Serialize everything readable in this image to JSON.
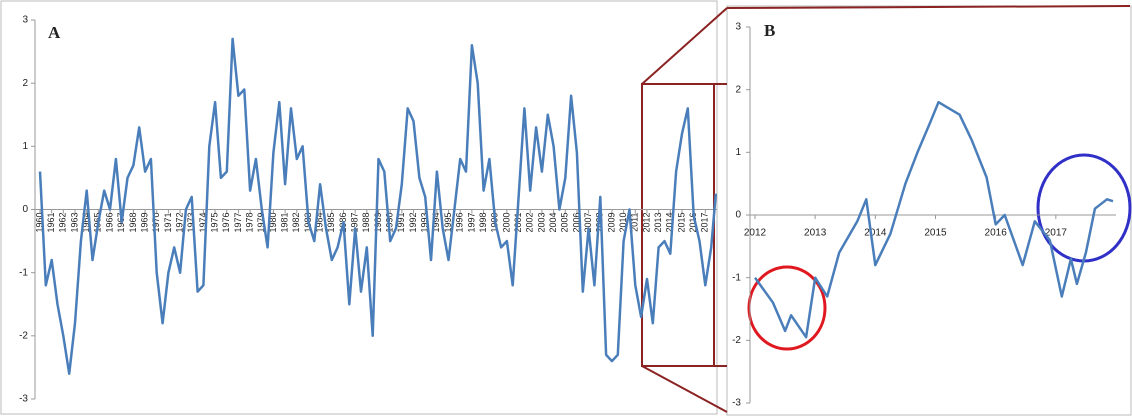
{
  "chart_data": [
    {
      "type": "line",
      "title": "A",
      "color": "#4a7ebb",
      "grid": false,
      "xlim": [
        1960,
        2018
      ],
      "ylim": [
        -3,
        3
      ],
      "yticks": [
        -3,
        -2,
        -1,
        0,
        1,
        2,
        3
      ],
      "xticks": [
        1960,
        1961,
        1962,
        1963,
        1964,
        1965,
        1966,
        1967,
        1968,
        1969,
        1970,
        1971,
        1972,
        1973,
        1974,
        1975,
        1976,
        1977,
        1978,
        1979,
        1980,
        1981,
        1982,
        1983,
        1984,
        1985,
        1986,
        1987,
        1988,
        1989,
        1990,
        1991,
        1992,
        1993,
        1994,
        1995,
        1996,
        1997,
        1998,
        1999,
        2000,
        2001,
        2002,
        2003,
        2004,
        2005,
        2006,
        2007,
        2008,
        2009,
        2010,
        2011,
        2012,
        2013,
        2014,
        2015,
        2016,
        2017
      ],
      "x": [
        1960,
        1960.5,
        1961,
        1961.5,
        1962,
        1962.5,
        1963,
        1963.5,
        1964,
        1964.5,
        1965,
        1965.5,
        1966,
        1966.5,
        1967,
        1967.5,
        1968,
        1968.5,
        1969,
        1969.5,
        1970,
        1970.5,
        1971,
        1971.5,
        1972,
        1972.5,
        1973,
        1973.5,
        1974,
        1974.5,
        1975,
        1975.5,
        1976,
        1976.5,
        1977,
        1977.5,
        1978,
        1978.5,
        1979,
        1979.5,
        1980,
        1980.5,
        1981,
        1981.5,
        1982,
        1982.5,
        1983,
        1983.5,
        1984,
        1984.5,
        1985,
        1985.5,
        1986,
        1986.5,
        1987,
        1987.5,
        1988,
        1988.5,
        1989,
        1989.5,
        1990,
        1990.5,
        1991,
        1991.5,
        1992,
        1992.5,
        1993,
        1993.5,
        1994,
        1994.5,
        1995,
        1995.5,
        1996,
        1996.5,
        1997,
        1997.5,
        1998,
        1998.5,
        1999,
        1999.5,
        2000,
        2000.5,
        2001,
        2001.5,
        2002,
        2002.5,
        2003,
        2003.5,
        2004,
        2004.5,
        2005,
        2005.5,
        2006,
        2006.5,
        2007,
        2007.5,
        2008,
        2008.5,
        2009,
        2009.5,
        2010,
        2010.5,
        2011,
        2011.5,
        2012,
        2012.5,
        2013,
        2013.5,
        2014,
        2014.5,
        2015,
        2015.5,
        2016,
        2016.5,
        2017,
        2017.5,
        2017.9
      ],
      "values": [
        0.6,
        -1.2,
        -0.8,
        -1.5,
        -2.0,
        -2.6,
        -1.8,
        -0.5,
        0.3,
        -0.8,
        -0.2,
        0.3,
        0.0,
        0.8,
        -0.2,
        0.5,
        0.7,
        1.3,
        0.6,
        0.8,
        -1.0,
        -1.8,
        -1.0,
        -0.6,
        -1.0,
        0.0,
        0.2,
        -1.3,
        -1.2,
        1.0,
        1.7,
        0.5,
        0.6,
        2.7,
        1.8,
        1.9,
        0.3,
        0.8,
        0.0,
        -0.6,
        0.9,
        1.7,
        0.4,
        1.6,
        0.8,
        1.0,
        -0.2,
        -0.5,
        0.4,
        -0.3,
        -0.8,
        -0.6,
        -0.2,
        -1.5,
        -0.3,
        -1.3,
        -0.6,
        -2.0,
        0.8,
        0.6,
        -0.5,
        -0.3,
        0.4,
        1.6,
        1.4,
        0.5,
        0.2,
        -0.8,
        0.6,
        -0.3,
        -0.8,
        0.0,
        0.8,
        0.6,
        2.6,
        2.0,
        0.3,
        0.8,
        -0.2,
        -0.6,
        -0.5,
        -1.2,
        0.2,
        1.6,
        0.3,
        1.3,
        0.6,
        1.5,
        1.0,
        0.0,
        0.5,
        1.8,
        0.9,
        -1.3,
        -0.3,
        -1.2,
        0.2,
        -2.3,
        -2.4,
        -2.3,
        -0.5,
        0.0,
        -1.2,
        -1.7,
        -1.1,
        -1.8,
        -0.6,
        -0.5,
        -0.7,
        0.6,
        1.2,
        1.6,
        -0.1,
        -0.5,
        -1.2,
        -0.6,
        0.25
      ]
    },
    {
      "type": "line",
      "title": "B",
      "color": "#4a7ebb",
      "grid": false,
      "xlim": [
        2012,
        2018
      ],
      "ylim": [
        -3,
        3
      ],
      "yticks": [
        -3,
        -2,
        -1,
        0,
        1,
        2,
        3
      ],
      "xticks": [
        2012,
        2013,
        2014,
        2015,
        2016,
        2017
      ],
      "x": [
        2012,
        2012.3,
        2012.5,
        2012.6,
        2012.85,
        2013,
        2013.2,
        2013.4,
        2013.7,
        2013.85,
        2014,
        2014.25,
        2014.5,
        2014.7,
        2014.9,
        2015.05,
        2015.4,
        2015.6,
        2015.85,
        2016,
        2016.15,
        2016.45,
        2016.65,
        2016.9,
        2017.1,
        2017.25,
        2017.35,
        2017.5,
        2017.65,
        2017.85,
        2017.95
      ],
      "values": [
        -1.0,
        -1.4,
        -1.85,
        -1.6,
        -1.95,
        -1.0,
        -1.3,
        -0.6,
        -0.1,
        0.25,
        -0.8,
        -0.3,
        0.5,
        1.0,
        1.45,
        1.8,
        1.6,
        1.2,
        0.6,
        -0.15,
        0.0,
        -0.8,
        -0.1,
        -0.4,
        -1.3,
        -0.7,
        -1.1,
        -0.6,
        0.1,
        0.25,
        0.22
      ]
    }
  ]
}
